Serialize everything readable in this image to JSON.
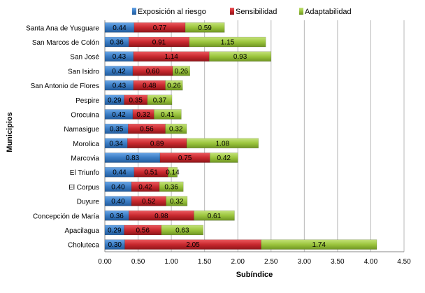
{
  "chart_data": {
    "type": "bar",
    "orientation": "horizontal",
    "stacked": true,
    "title": "",
    "xlabel": "Subíndice",
    "ylabel": "Municipios",
    "xlim": [
      0,
      4.5
    ],
    "xticks": [
      "0.00",
      "0.50",
      "1.00",
      "1.50",
      "2.00",
      "2.50",
      "3.00",
      "3.50",
      "4.00",
      "4.50"
    ],
    "grid": "vertical",
    "legend_position": "top",
    "categories": [
      "Santa Ana de Yusguare",
      "San Marcos de Colón",
      "San José",
      "San Isidro",
      "San Antonio de Flores",
      "Pespire",
      "Orocuina",
      "Namasigue",
      "Morolica",
      "Marcovia",
      "El Triunfo",
      "El Corpus",
      "Duyure",
      "Concepción de María",
      "Apacilagua",
      "Choluteca"
    ],
    "series": [
      {
        "name": "Exposición al riesgo",
        "color": "#3a7cc4",
        "values": [
          0.44,
          0.36,
          0.43,
          0.42,
          0.43,
          0.29,
          0.42,
          0.35,
          0.34,
          0.83,
          0.44,
          0.4,
          0.4,
          0.36,
          0.29,
          0.3
        ],
        "labels": [
          "0.44",
          "0.36",
          "0.43",
          "0.42",
          "0.43",
          "0.29",
          "0.42",
          "0.35",
          "0.34",
          "0.83",
          "0.44",
          "0.40",
          "0.40",
          "0.36",
          "0.29",
          "0.30"
        ]
      },
      {
        "name": "Sensibilidad",
        "color": "#c8282e",
        "values": [
          0.77,
          0.91,
          1.14,
          0.6,
          0.48,
          0.35,
          0.32,
          0.56,
          0.89,
          0.75,
          0.51,
          0.42,
          0.52,
          0.98,
          0.56,
          2.05
        ],
        "labels": [
          "0.77",
          "0.91",
          "1.14",
          "0.60",
          "0.48",
          "0.35",
          "0.32",
          "0.56",
          "0.89",
          "0.75",
          "0.51",
          "0.42",
          "0.52",
          "0.98",
          "0.56",
          "2.05"
        ]
      },
      {
        "name": "Adaptabilidad",
        "color": "#9bc53d",
        "values": [
          0.59,
          1.15,
          0.93,
          0.26,
          0.26,
          0.37,
          0.41,
          0.32,
          1.08,
          0.42,
          0.14,
          0.36,
          0.32,
          0.61,
          0.63,
          1.74
        ],
        "labels": [
          "0.59",
          "1.15",
          "0.93",
          "0.26",
          "0.26",
          "0.37",
          "0.41",
          "0.32",
          "1.08",
          "0.42",
          "0.14",
          "0.36",
          "0.32",
          "0.61",
          "0.63",
          "1.74"
        ]
      }
    ]
  }
}
